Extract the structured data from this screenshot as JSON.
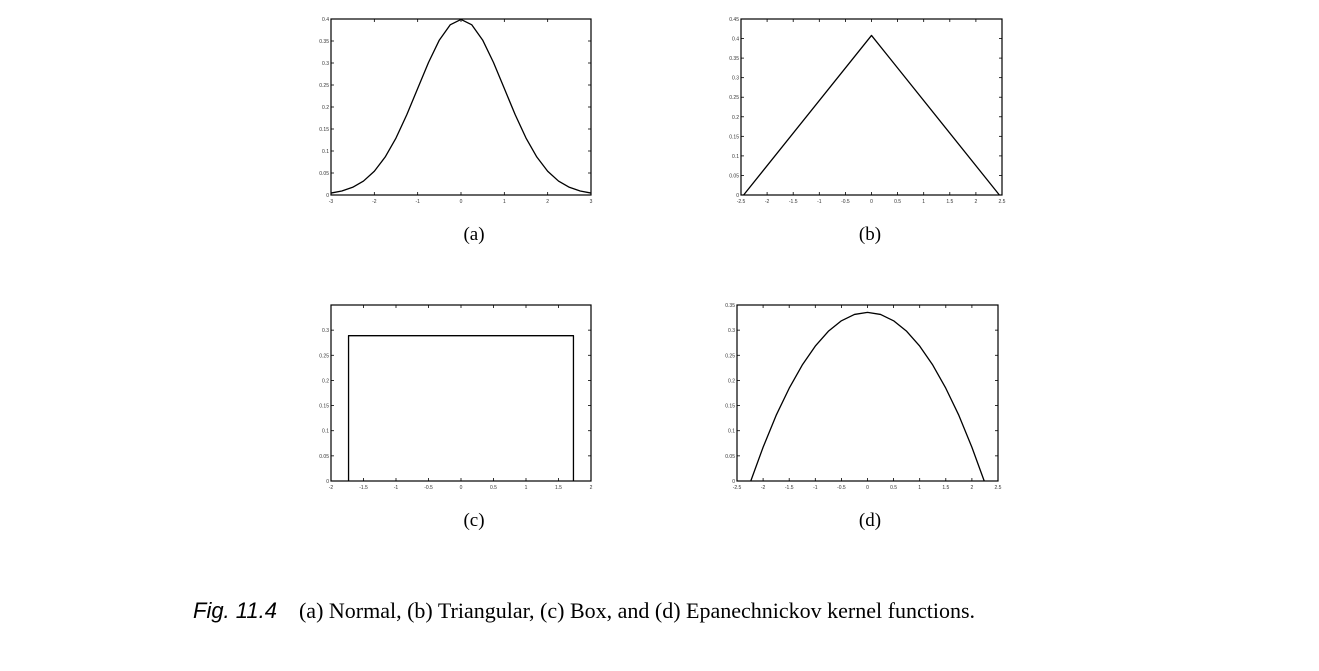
{
  "chart_data": [
    {
      "id": "a",
      "type": "line",
      "title": "",
      "xlabel": "",
      "ylabel": "",
      "xlim": [
        -3,
        3
      ],
      "ylim": [
        0,
        0.4
      ],
      "xticks": [
        -3,
        -2,
        -1,
        0,
        1,
        2,
        3
      ],
      "xtick_labels": [
        "-3",
        "-2",
        "-1",
        "0",
        "1",
        "2",
        "3"
      ],
      "yticks": [
        0,
        0.05,
        0.1,
        0.15,
        0.2,
        0.25,
        0.3,
        0.35,
        0.4
      ],
      "ytick_labels": [
        "0",
        "0.05",
        "0.1",
        "0.15",
        "0.2",
        "0.25",
        "0.3",
        "0.35",
        "0.4"
      ],
      "x": [
        -3,
        -2.75,
        -2.5,
        -2.25,
        -2,
        -1.75,
        -1.5,
        -1.25,
        -1,
        -0.75,
        -0.5,
        -0.25,
        0,
        0.25,
        0.5,
        0.75,
        1,
        1.25,
        1.5,
        1.75,
        2,
        2.25,
        2.5,
        2.75,
        3
      ],
      "y": [
        0.0044,
        0.0091,
        0.0175,
        0.0317,
        0.054,
        0.0863,
        0.1295,
        0.1826,
        0.242,
        0.3011,
        0.3521,
        0.3867,
        0.3989,
        0.3867,
        0.3521,
        0.3011,
        0.242,
        0.1826,
        0.1295,
        0.0863,
        0.054,
        0.0317,
        0.0175,
        0.0091,
        0.0044
      ],
      "grid": false,
      "panel_label": "(a)"
    },
    {
      "id": "b",
      "type": "line",
      "title": "",
      "xlabel": "",
      "ylabel": "",
      "xlim": [
        -2.5,
        2.5
      ],
      "ylim": [
        0,
        0.45
      ],
      "xticks": [
        -2.5,
        -2,
        -1.5,
        -1,
        -0.5,
        0,
        0.5,
        1,
        1.5,
        2,
        2.5
      ],
      "xtick_labels": [
        "-2.5",
        "-2",
        "-1.5",
        "-1",
        "-0.5",
        "0",
        "0.5",
        "1",
        "1.5",
        "2",
        "2.5"
      ],
      "yticks": [
        0,
        0.05,
        0.1,
        0.15,
        0.2,
        0.25,
        0.3,
        0.35,
        0.4,
        0.45
      ],
      "ytick_labels": [
        "0",
        "0.05",
        "0.1",
        "0.15",
        "0.2",
        "0.25",
        "0.3",
        "0.35",
        "0.4",
        "0.45"
      ],
      "x": [
        -2.45,
        0,
        2.45
      ],
      "y": [
        0,
        0.408,
        0
      ],
      "grid": false,
      "panel_label": "(b)"
    },
    {
      "id": "c",
      "type": "line",
      "title": "",
      "xlabel": "",
      "ylabel": "",
      "xlim": [
        -2,
        2
      ],
      "ylim": [
        0,
        0.35
      ],
      "xticks": [
        -2,
        -1.5,
        -1,
        -0.5,
        0,
        0.5,
        1,
        1.5,
        2
      ],
      "xtick_labels": [
        "-2",
        "-1.5",
        "-1",
        "-0.5",
        "0",
        "0.5",
        "1",
        "1.5",
        "2"
      ],
      "yticks": [
        0,
        0.05,
        0.1,
        0.15,
        0.2,
        0.25,
        0.3
      ],
      "ytick_labels": [
        "0",
        "0.05",
        "0.1",
        "0.15",
        "0.2",
        "0.25",
        "0.3"
      ],
      "x": [
        -1.73,
        -1.73,
        1.73,
        1.73
      ],
      "y": [
        0,
        0.289,
        0.289,
        0
      ],
      "grid": false,
      "panel_label": "(c)"
    },
    {
      "id": "d",
      "type": "line",
      "title": "",
      "xlabel": "",
      "ylabel": "",
      "xlim": [
        -2.5,
        2.5
      ],
      "ylim": [
        0,
        0.35
      ],
      "xticks": [
        -2.5,
        -2,
        -1.5,
        -1,
        -0.5,
        0,
        0.5,
        1,
        1.5,
        2,
        2.5
      ],
      "xtick_labels": [
        "-2.5",
        "-2",
        "-1.5",
        "-1",
        "-0.5",
        "0",
        "0.5",
        "1",
        "1.5",
        "2",
        "2.5"
      ],
      "yticks": [
        0,
        0.05,
        0.1,
        0.15,
        0.2,
        0.25,
        0.3,
        0.35
      ],
      "ytick_labels": [
        "0",
        "0.05",
        "0.1",
        "0.15",
        "0.2",
        "0.25",
        "0.3",
        "0.35"
      ],
      "x": [
        -2.236,
        -2,
        -1.75,
        -1.5,
        -1.25,
        -1,
        -0.75,
        -0.5,
        -0.25,
        0,
        0.25,
        0.5,
        0.75,
        1,
        1.25,
        1.5,
        1.75,
        2,
        2.236
      ],
      "y": [
        0,
        0.0671,
        0.1306,
        0.1845,
        0.2306,
        0.2683,
        0.2977,
        0.3186,
        0.3312,
        0.3354,
        0.3312,
        0.3186,
        0.2977,
        0.2683,
        0.2306,
        0.1845,
        0.1306,
        0.0671,
        0
      ],
      "grid": false,
      "panel_label": "(d)"
    }
  ],
  "caption": {
    "fig_number": "Fig. 11.4",
    "text": "(a) Normal, (b) Triangular, (c) Box, and (d) Epanechnickov kernel functions."
  }
}
